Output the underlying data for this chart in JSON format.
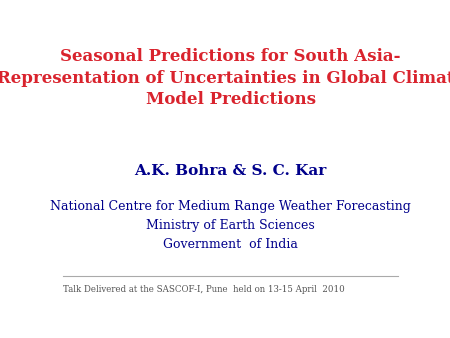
{
  "title_line1": "Seasonal Predictions for South Asia-",
  "title_line2": "Representation of Uncertainties in Global Climate",
  "title_line3": "Model Predictions",
  "title_color": "#d9232d",
  "author": "A.K. Bohra & S. C. Kar",
  "author_color": "#00008B",
  "org_line1": "National Centre for Medium Range Weather Forecasting",
  "org_line2": "Ministry of Earth Sciences",
  "org_line3": "Government  of India",
  "org_color": "#00008B",
  "footer": "Talk Delivered at the SASCOF-I, Pune  held on 13-15 April  2010",
  "footer_color": "#555555",
  "background_color": "#ffffff",
  "line_color": "#aaaaaa"
}
